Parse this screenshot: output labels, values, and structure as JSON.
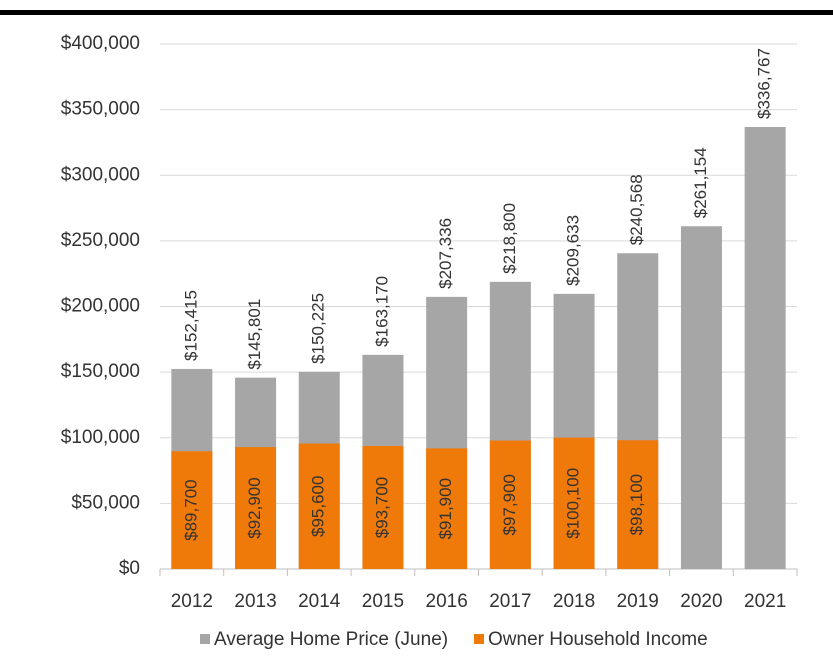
{
  "chart_data": {
    "type": "bar",
    "categories": [
      "2012",
      "2013",
      "2014",
      "2015",
      "2016",
      "2017",
      "2018",
      "2019",
      "2020",
      "2021"
    ],
    "series": [
      {
        "name": "Average Home Price (June)",
        "color": "#a6a6a6",
        "values": [
          152415,
          145801,
          150225,
          163170,
          207336,
          218800,
          209633,
          240568,
          261154,
          336767
        ],
        "value_labels": [
          "$152,415",
          "$145,801",
          "$150,225",
          "$163,170",
          "$207,336",
          "$218,800",
          "$209,633",
          "$240,568",
          "$261,154",
          "$336,767"
        ]
      },
      {
        "name": "Owner Household Income",
        "color": "#ef7a0a",
        "values": [
          89700,
          92900,
          95600,
          93700,
          91900,
          97900,
          100100,
          98100,
          null,
          null
        ],
        "value_labels": [
          "$89,700",
          "$92,900",
          "$95,600",
          "$93,700",
          "$91,900",
          "$97,900",
          "$100,100",
          "$98,100",
          null,
          null
        ]
      }
    ],
    "ylim": [
      0,
      400000
    ],
    "yticks": [
      {
        "value": 0,
        "label": "$0"
      },
      {
        "value": 50000,
        "label": "$50,000"
      },
      {
        "value": 100000,
        "label": "$100,000"
      },
      {
        "value": 150000,
        "label": "$150,000"
      },
      {
        "value": 200000,
        "label": "$200,000"
      },
      {
        "value": 250000,
        "label": "$250,000"
      },
      {
        "value": 300000,
        "label": "$300,000"
      },
      {
        "value": 350000,
        "label": "$350,000"
      },
      {
        "value": 400000,
        "label": "$400,000"
      }
    ],
    "grid": true,
    "legend": "bottom"
  }
}
